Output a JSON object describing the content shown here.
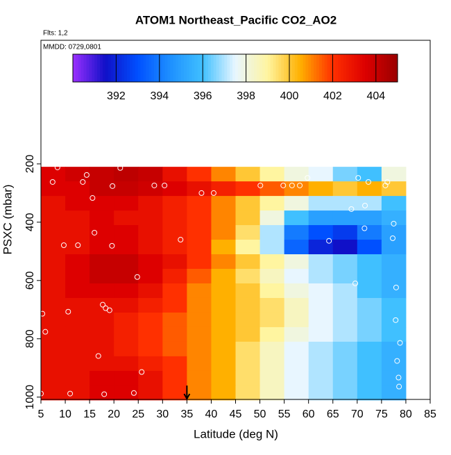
{
  "chart_data": {
    "type": "heatmap",
    "title": "ATOM1 Northeast_Pacific CO2_AO2",
    "subtitle": "Flts: 1,2",
    "annotation": "MMDD: 0729,0801",
    "xlabel": "Latitude (deg N)",
    "ylabel": "PSXC (mbar)",
    "xlim": [
      5,
      85
    ],
    "xticks": [
      5,
      10,
      15,
      20,
      25,
      30,
      35,
      40,
      45,
      50,
      55,
      60,
      65,
      70,
      75,
      80,
      85
    ],
    "ylim": [
      1008,
      -224
    ],
    "yticks": [
      200,
      400,
      600,
      800,
      1000
    ],
    "x_bins": [
      5,
      10,
      15,
      20,
      25,
      30,
      35,
      40,
      45,
      50,
      55,
      60,
      65,
      70,
      75,
      80
    ],
    "y_bins": [
      210,
      260,
      310,
      360,
      410,
      460,
      510,
      560,
      610,
      660,
      710,
      760,
      810,
      860,
      910,
      960,
      1010
    ],
    "z": [
      [
        403.5,
        403.8,
        404,
        404.2,
        404,
        403,
        402,
        401,
        400,
        399,
        398,
        397.5,
        396.5,
        396,
        398
      ],
      [
        403.5,
        403.5,
        404,
        404,
        403.8,
        403.5,
        403,
        402.5,
        402,
        401.5,
        401,
        400.5,
        400,
        400.5,
        400
      ],
      [
        403,
        403.5,
        403.5,
        403.5,
        403,
        402.5,
        402,
        401,
        400,
        399,
        398,
        397,
        397,
        397,
        396
      ],
      [
        403,
        403,
        403.5,
        403,
        403,
        402.5,
        402,
        401,
        400,
        398,
        396,
        395,
        395,
        395,
        395.5
      ],
      [
        403,
        403,
        403.5,
        403.5,
        403,
        402.5,
        402,
        401,
        399.5,
        397,
        394,
        393,
        392.5,
        394,
        395
      ],
      [
        403,
        403,
        403.5,
        403.5,
        403,
        402.5,
        402,
        400.5,
        399,
        397,
        393.5,
        392,
        391.5,
        393,
        395
      ],
      [
        403,
        403.5,
        404,
        404,
        403.5,
        403,
        402,
        401,
        400,
        399,
        398,
        397,
        396.5,
        396,
        395.5
      ],
      [
        403,
        403.5,
        404,
        404,
        403.5,
        402.5,
        401.5,
        400.5,
        399.5,
        398.5,
        397.5,
        397,
        396.5,
        396,
        395.5
      ],
      [
        403,
        403.5,
        403.5,
        403.5,
        403,
        402,
        401,
        400.5,
        400,
        399,
        398,
        397.5,
        397,
        396,
        395.5
      ],
      [
        403,
        403,
        403,
        403,
        402.5,
        402,
        401,
        400.5,
        400,
        399.5,
        398.5,
        397.5,
        397,
        396.5,
        396
      ],
      [
        403,
        403,
        403,
        402.5,
        402,
        401.5,
        401,
        400.5,
        400,
        399.5,
        398.5,
        397.5,
        397,
        396.5,
        396
      ],
      [
        403,
        403,
        403,
        402.5,
        402,
        401.5,
        401,
        400.5,
        400,
        399,
        398,
        397.5,
        397,
        396.5,
        396
      ],
      [
        403,
        403,
        403,
        402.5,
        402,
        401.5,
        401,
        400.5,
        399.5,
        398.5,
        397.5,
        397,
        396.5,
        396,
        395.5
      ],
      [
        403,
        403,
        403,
        403,
        402.5,
        402,
        401,
        400.5,
        399.5,
        398.5,
        397.5,
        397,
        396.5,
        396,
        395.5
      ],
      [
        403,
        403,
        403.5,
        403.5,
        403,
        402,
        401,
        400.5,
        399.5,
        398.5,
        397.5,
        397,
        396.5,
        396,
        395.5
      ],
      [
        403,
        403,
        403.5,
        403.5,
        403,
        402,
        401,
        400.5,
        399.5,
        398.5,
        397.5,
        397,
        396.5,
        396,
        395.5
      ]
    ],
    "clim": [
      390,
      405
    ],
    "cticks": [
      392,
      394,
      396,
      398,
      400,
      402,
      404
    ],
    "colors": [
      "#9b30ff",
      "#1010c8",
      "#0050ff",
      "#1e90ff",
      "#40c0ff",
      "#e8f6ff",
      "#fff5a0",
      "#ffb000",
      "#ff3000",
      "#dd0000",
      "#990000"
    ],
    "points": {
      "x": [
        8.4,
        14.4,
        13.6,
        7.4,
        21.3,
        19.7,
        28.3,
        30.4,
        15.6,
        38,
        40.5,
        50.1,
        54.8,
        56.6,
        58.2,
        59.8,
        70.2,
        72.3,
        75.8,
        76.2,
        68.8,
        71.6,
        77.5,
        71.5,
        77.3,
        16,
        9.7,
        12.6,
        19.6,
        33.7,
        64.2,
        24.8,
        69.6,
        78,
        17.7,
        18.3,
        19.1,
        10.6,
        5.3,
        5.9,
        77.9,
        78.8,
        16.8,
        78.2,
        25.7,
        78.5,
        78.6,
        5,
        11,
        18,
        24.1
      ],
      "y": [
        212,
        238,
        262,
        262,
        214,
        276,
        274,
        274,
        317,
        300,
        300,
        274,
        274,
        274,
        274,
        248,
        248,
        262,
        274,
        262,
        355,
        343,
        405,
        421,
        455,
        436,
        479,
        479,
        481,
        460,
        464,
        588,
        610,
        624,
        683,
        695,
        702,
        707,
        714,
        776,
        736,
        814,
        859,
        876,
        914,
        933,
        964,
        988,
        988,
        990,
        986
      ]
    },
    "arrow_x": 35
  }
}
